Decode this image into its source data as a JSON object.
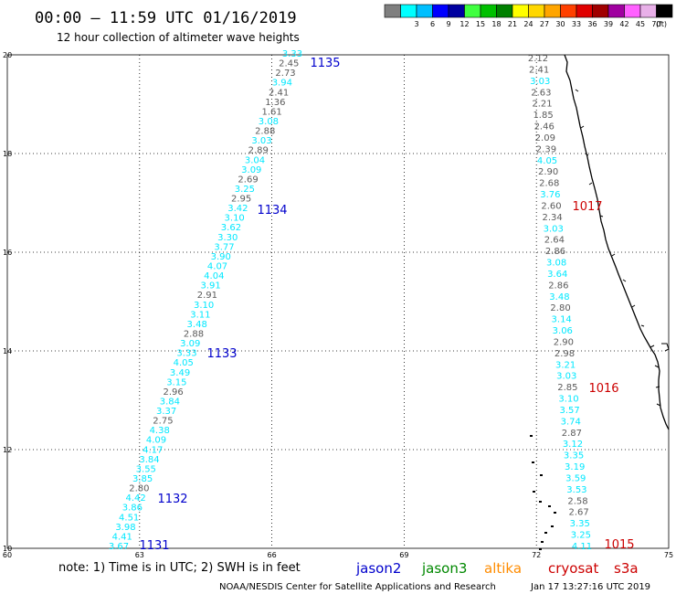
{
  "header": {
    "title": "00:00 – 11:59 UTC 01/16/2019",
    "subtitle": "12 hour collection of altimeter wave heights"
  },
  "legend": {
    "unit": "(ft)",
    "items": [
      {
        "color": "#7f7f7f",
        "label": ""
      },
      {
        "color": "#00ffff",
        "label": "3"
      },
      {
        "color": "#00bfff",
        "label": "6"
      },
      {
        "color": "#0000ff",
        "label": "9"
      },
      {
        "color": "#0000a0",
        "label": "12"
      },
      {
        "color": "#40ff40",
        "label": "15"
      },
      {
        "color": "#00c000",
        "label": "18"
      },
      {
        "color": "#008000",
        "label": "21"
      },
      {
        "color": "#ffff00",
        "label": "24"
      },
      {
        "color": "#ffd700",
        "label": "27"
      },
      {
        "color": "#ffa500",
        "label": "30"
      },
      {
        "color": "#ff4000",
        "label": "33"
      },
      {
        "color": "#e00000",
        "label": "36"
      },
      {
        "color": "#a00000",
        "label": "39"
      },
      {
        "color": "#a000a0",
        "label": "42"
      },
      {
        "color": "#ff60ff",
        "label": "45"
      },
      {
        "color": "#e8b0e8",
        "label": "70"
      },
      {
        "color": "#000000",
        "label": ""
      }
    ]
  },
  "axes": {
    "x_ticks": [
      "60",
      "63",
      "66",
      "69",
      "72",
      "75"
    ],
    "y_ticks": [
      "10",
      "12",
      "14",
      "16",
      "18",
      "20"
    ],
    "x_range": [
      60,
      75
    ],
    "y_range": [
      10,
      20
    ]
  },
  "colors": {
    "cyan": "#00e8ff",
    "gray": "#5a5a5a",
    "jason2": "#0000cc",
    "jason3": "#008800",
    "altika": "#ff8c00",
    "cryosat": "#cc0000",
    "s3a": "#cc0000",
    "grid": "#000000"
  },
  "tracks": [
    {
      "id": "left",
      "values": [
        {
          "v": "3.33",
          "c": "cyan"
        },
        {
          "v": "2.45",
          "c": "gray"
        },
        {
          "v": "2.73",
          "c": "gray"
        },
        {
          "v": "3.94",
          "c": "cyan"
        },
        {
          "v": "2.41",
          "c": "gray"
        },
        {
          "v": "1.36",
          "c": "gray"
        },
        {
          "v": "1.61",
          "c": "gray"
        },
        {
          "v": "3.08",
          "c": "cyan"
        },
        {
          "v": "2.88",
          "c": "gray"
        },
        {
          "v": "3.03",
          "c": "cyan"
        },
        {
          "v": "2.89",
          "c": "gray"
        },
        {
          "v": "3.04",
          "c": "cyan"
        },
        {
          "v": "3.09",
          "c": "cyan"
        },
        {
          "v": "2.69",
          "c": "gray"
        },
        {
          "v": "3.25",
          "c": "cyan"
        },
        {
          "v": "2.95",
          "c": "gray"
        },
        {
          "v": "3.42",
          "c": "cyan"
        },
        {
          "v": "3.10",
          "c": "cyan"
        },
        {
          "v": "3.62",
          "c": "cyan"
        },
        {
          "v": "3.30",
          "c": "cyan"
        },
        {
          "v": "3.77",
          "c": "cyan"
        },
        {
          "v": "3.90",
          "c": "cyan"
        },
        {
          "v": "4.07",
          "c": "cyan"
        },
        {
          "v": "4.04",
          "c": "cyan"
        },
        {
          "v": "3.91",
          "c": "cyan"
        },
        {
          "v": "2.91",
          "c": "gray"
        },
        {
          "v": "3.10",
          "c": "cyan"
        },
        {
          "v": "3.11",
          "c": "cyan"
        },
        {
          "v": "3.48",
          "c": "cyan"
        },
        {
          "v": "2.88",
          "c": "gray"
        },
        {
          "v": "3.09",
          "c": "cyan"
        },
        {
          "v": "3.33",
          "c": "cyan"
        },
        {
          "v": "4.05",
          "c": "cyan"
        },
        {
          "v": "3.49",
          "c": "cyan"
        },
        {
          "v": "3.15",
          "c": "cyan"
        },
        {
          "v": "2.96",
          "c": "gray"
        },
        {
          "v": "3.84",
          "c": "cyan"
        },
        {
          "v": "3.37",
          "c": "cyan"
        },
        {
          "v": "2.75",
          "c": "gray"
        },
        {
          "v": "4.38",
          "c": "cyan"
        },
        {
          "v": "4.09",
          "c": "cyan"
        },
        {
          "v": "4.17",
          "c": "cyan"
        },
        {
          "v": "3.84",
          "c": "cyan"
        },
        {
          "v": "3.55",
          "c": "cyan"
        },
        {
          "v": "3.85",
          "c": "cyan"
        },
        {
          "v": "2.80",
          "c": "gray"
        },
        {
          "v": "4.42",
          "c": "cyan"
        },
        {
          "v": "3.86",
          "c": "cyan"
        },
        {
          "v": "4.51",
          "c": "cyan"
        },
        {
          "v": "3.98",
          "c": "cyan"
        },
        {
          "v": "4.41",
          "c": "cyan"
        },
        {
          "v": "3.67",
          "c": "cyan"
        }
      ]
    },
    {
      "id": "right",
      "values": [
        {
          "v": "2.12",
          "c": "gray"
        },
        {
          "v": "2.41",
          "c": "gray"
        },
        {
          "v": "3.03",
          "c": "cyan"
        },
        {
          "v": "2.63",
          "c": "gray"
        },
        {
          "v": "2.21",
          "c": "gray"
        },
        {
          "v": "1.85",
          "c": "gray"
        },
        {
          "v": "2.46",
          "c": "gray"
        },
        {
          "v": "2.09",
          "c": "gray"
        },
        {
          "v": "2.39",
          "c": "gray"
        },
        {
          "v": "4.05",
          "c": "cyan"
        },
        {
          "v": "2.90",
          "c": "gray"
        },
        {
          "v": "2.68",
          "c": "gray"
        },
        {
          "v": "3.76",
          "c": "cyan"
        },
        {
          "v": "2.60",
          "c": "gray"
        },
        {
          "v": "2.34",
          "c": "gray"
        },
        {
          "v": "3.03",
          "c": "cyan"
        },
        {
          "v": "2.64",
          "c": "gray"
        },
        {
          "v": "2.86",
          "c": "gray"
        },
        {
          "v": "3.08",
          "c": "cyan"
        },
        {
          "v": "3.64",
          "c": "cyan"
        },
        {
          "v": "2.86",
          "c": "gray"
        },
        {
          "v": "3.48",
          "c": "cyan"
        },
        {
          "v": "2.80",
          "c": "gray"
        },
        {
          "v": "3.14",
          "c": "cyan"
        },
        {
          "v": "3.06",
          "c": "cyan"
        },
        {
          "v": "2.90",
          "c": "gray"
        },
        {
          "v": "2.98",
          "c": "gray"
        },
        {
          "v": "3.21",
          "c": "cyan"
        },
        {
          "v": "3.03",
          "c": "cyan"
        },
        {
          "v": "2.85",
          "c": "gray"
        },
        {
          "v": "3.10",
          "c": "cyan"
        },
        {
          "v": "3.57",
          "c": "cyan"
        },
        {
          "v": "3.74",
          "c": "cyan"
        },
        {
          "v": "2.87",
          "c": "gray"
        },
        {
          "v": "3.12",
          "c": "cyan"
        },
        {
          "v": "3.35",
          "c": "cyan"
        },
        {
          "v": "3.19",
          "c": "cyan"
        },
        {
          "v": "3.59",
          "c": "cyan"
        },
        {
          "v": "3.53",
          "c": "cyan"
        },
        {
          "v": "2.58",
          "c": "gray"
        },
        {
          "v": "2.67",
          "c": "gray"
        },
        {
          "v": "3.35",
          "c": "cyan"
        },
        {
          "v": "3.25",
          "c": "cyan"
        },
        {
          "v": "4.11",
          "c": "cyan"
        }
      ]
    }
  ],
  "pass_labels": [
    {
      "text": "1135",
      "c": "jason2"
    },
    {
      "text": "1134",
      "c": "jason2"
    },
    {
      "text": "1133",
      "c": "jason2"
    },
    {
      "text": "1132",
      "c": "jason2"
    },
    {
      "text": "1131",
      "c": "jason2"
    },
    {
      "text": "1017",
      "c": "cryosat"
    },
    {
      "text": "1016",
      "c": "cryosat"
    },
    {
      "text": "1015",
      "c": "cryosat"
    }
  ],
  "footer": {
    "note": "note: 1) Time is in UTC; 2) SWH is in feet",
    "satellites": [
      {
        "name": "jason2",
        "c": "jason2"
      },
      {
        "name": "jason3",
        "c": "jason3"
      },
      {
        "name": "altika",
        "c": "altika"
      },
      {
        "name": "cryosat",
        "c": "cryosat"
      },
      {
        "name": "s3a",
        "c": "s3a"
      }
    ],
    "credit": "NOAA/NESDIS Center for Satellite Applications and Research",
    "timestamp": "Jan 17 13:27:16 UTC 2019"
  }
}
